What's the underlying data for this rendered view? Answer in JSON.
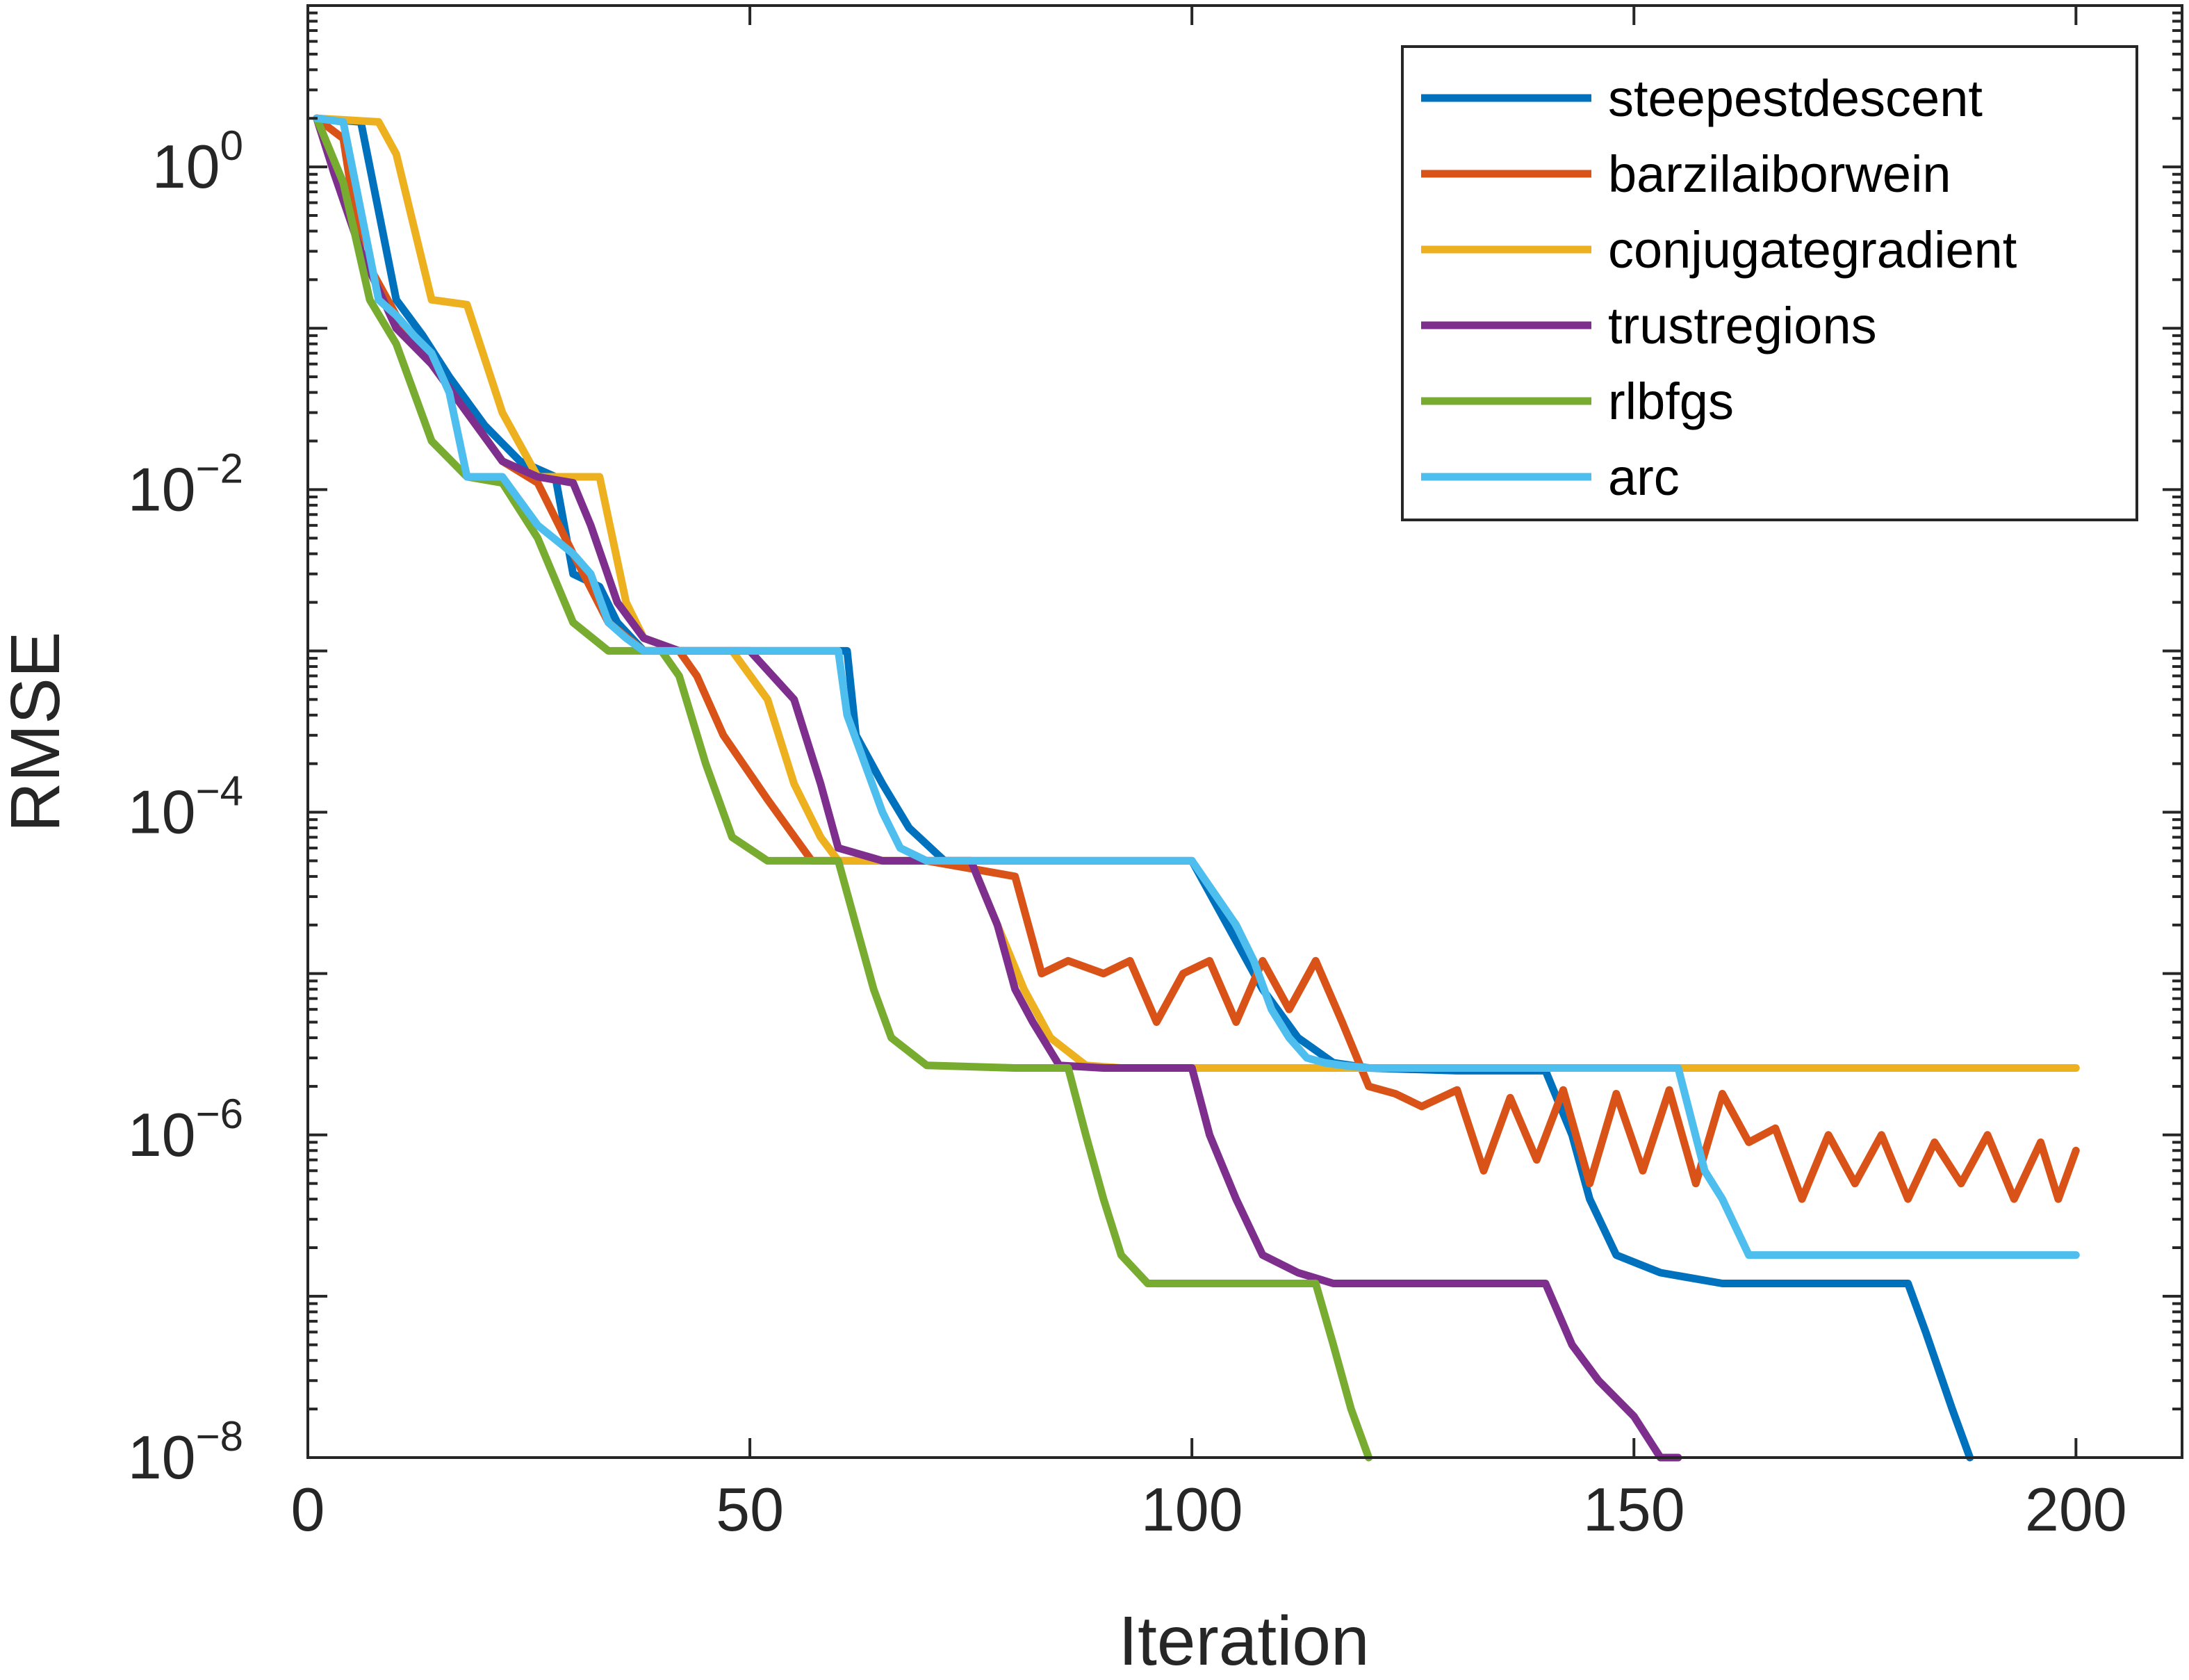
{
  "chart_data": {
    "type": "line",
    "title": "",
    "xlabel": "Iteration",
    "ylabel": "RMSE",
    "xlim": [
      0,
      212
    ],
    "xticks": [
      0,
      50,
      100,
      150,
      200
    ],
    "yscale": "log",
    "ylim": [
      1e-08,
      10
    ],
    "yticks": [
      {
        "base": "10",
        "exp": "0",
        "value": 1
      },
      {
        "base": "10",
        "exp": "−2",
        "value": 0.01
      },
      {
        "base": "10",
        "exp": "−4",
        "value": 0.0001
      },
      {
        "base": "10",
        "exp": "−6",
        "value": 1e-06
      },
      {
        "base": "10",
        "exp": "−8",
        "value": 1e-08
      }
    ],
    "grid": false,
    "legend_position": "top-right",
    "series": [
      {
        "name": "steepestdescent",
        "color": "#0072BD",
        "x": [
          1,
          6,
          10,
          13,
          16,
          20,
          24,
          28,
          30,
          33,
          35,
          38,
          42,
          50,
          55,
          61,
          62,
          65,
          68,
          72,
          78,
          85,
          95,
          100,
          104,
          108,
          112,
          116,
          120,
          130,
          140,
          143,
          145,
          148,
          153,
          160,
          170,
          181,
          183,
          186,
          188
        ],
        "y": [
          2,
          1.9,
          0.15,
          0.09,
          0.05,
          0.025,
          0.015,
          0.012,
          0.003,
          0.0025,
          0.0015,
          0.001,
          0.001,
          0.001,
          0.001,
          0.001,
          0.0003,
          0.00015,
          8e-05,
          5e-05,
          5e-05,
          5e-05,
          5e-05,
          5e-05,
          2e-05,
          8e-06,
          4e-06,
          2.8e-06,
          2.6e-06,
          2.5e-06,
          2.5e-06,
          1e-06,
          4e-07,
          1.8e-07,
          1.4e-07,
          1.2e-07,
          1.2e-07,
          1.2e-07,
          6e-08,
          2e-08,
          1e-08
        ]
      },
      {
        "name": "barzilaiborwein",
        "color": "#D95319",
        "x": [
          1,
          4,
          6,
          10,
          14,
          18,
          22,
          26,
          30,
          34,
          38,
          42,
          44,
          47,
          52,
          57,
          62,
          70,
          80,
          83,
          86,
          90,
          93,
          96,
          99,
          102,
          105,
          108,
          111,
          114,
          117,
          120,
          123,
          126,
          130,
          133,
          136,
          139,
          142,
          145,
          148,
          151,
          154,
          157,
          160,
          163,
          166,
          169,
          172,
          175,
          178,
          181,
          184,
          187,
          190,
          193,
          196,
          198,
          200
        ],
        "y": [
          2,
          1.5,
          0.3,
          0.12,
          0.06,
          0.03,
          0.015,
          0.011,
          0.004,
          0.0015,
          0.001,
          0.001,
          0.0007,
          0.0003,
          0.00012,
          5e-05,
          5e-05,
          5e-05,
          4e-05,
          1e-05,
          1.2e-05,
          1e-05,
          1.2e-05,
          5e-06,
          1e-05,
          1.2e-05,
          5e-06,
          1.2e-05,
          6e-06,
          1.2e-05,
          5e-06,
          2e-06,
          1.8e-06,
          1.5e-06,
          1.9e-06,
          6e-07,
          1.7e-06,
          7e-07,
          1.9e-06,
          5e-07,
          1.8e-06,
          6e-07,
          1.9e-06,
          5e-07,
          1.8e-06,
          9e-07,
          1.1e-06,
          4e-07,
          1e-06,
          5e-07,
          1e-06,
          4e-07,
          9e-07,
          5e-07,
          1e-06,
          4e-07,
          9e-07,
          4e-07,
          8e-07
        ]
      },
      {
        "name": "conjugategradient",
        "color": "#EDB120",
        "x": [
          1,
          8,
          10,
          14,
          18,
          22,
          26,
          30,
          33,
          36,
          38,
          42,
          48,
          52,
          55,
          58,
          60,
          65,
          70,
          75,
          78,
          81,
          84,
          88,
          92,
          100,
          120,
          150,
          200
        ],
        "y": [
          2,
          1.9,
          1.2,
          0.15,
          0.14,
          0.03,
          0.012,
          0.012,
          0.012,
          0.002,
          0.0012,
          0.001,
          0.001,
          0.0005,
          0.00015,
          7e-05,
          5e-05,
          5e-05,
          5e-05,
          5e-05,
          2e-05,
          8e-06,
          4e-06,
          2.7e-06,
          2.6e-06,
          2.6e-06,
          2.6e-06,
          2.6e-06,
          2.6e-06
        ]
      },
      {
        "name": "trustregions",
        "color": "#7E2F8E",
        "x": [
          1,
          3,
          6,
          10,
          14,
          18,
          22,
          26,
          30,
          32,
          35,
          38,
          42,
          50,
          55,
          58,
          60,
          65,
          70,
          75,
          78,
          80,
          82,
          85,
          90,
          100,
          102,
          105,
          108,
          112,
          116,
          120,
          130,
          140,
          143,
          146,
          150,
          153,
          155
        ],
        "y": [
          2,
          0.9,
          0.3,
          0.1,
          0.06,
          0.03,
          0.015,
          0.012,
          0.011,
          0.006,
          0.002,
          0.0012,
          0.001,
          0.001,
          0.0005,
          0.00015,
          6e-05,
          5e-05,
          5e-05,
          5e-05,
          2e-05,
          8e-06,
          5e-06,
          2.7e-06,
          2.6e-06,
          2.6e-06,
          1e-06,
          4e-07,
          1.8e-07,
          1.4e-07,
          1.2e-07,
          1.2e-07,
          1.2e-07,
          1.2e-07,
          5e-08,
          3e-08,
          1.8e-08,
          1e-08,
          1e-08
        ]
      },
      {
        "name": "rlbfgs",
        "color": "#77AC30",
        "x": [
          1,
          4,
          7,
          10,
          14,
          18,
          22,
          26,
          30,
          34,
          38,
          40,
          42,
          45,
          48,
          52,
          57,
          60,
          62,
          64,
          66,
          70,
          80,
          86,
          88,
          90,
          92,
          95,
          100,
          105,
          114,
          116,
          118,
          120
        ],
        "y": [
          2,
          0.8,
          0.15,
          0.08,
          0.02,
          0.012,
          0.011,
          0.005,
          0.0015,
          0.001,
          0.001,
          0.001,
          0.0007,
          0.0002,
          7e-05,
          5e-05,
          5e-05,
          5e-05,
          2e-05,
          8e-06,
          4e-06,
          2.7e-06,
          2.6e-06,
          2.6e-06,
          1e-06,
          4e-07,
          1.8e-07,
          1.2e-07,
          1.2e-07,
          1.2e-07,
          1.2e-07,
          5e-08,
          2e-08,
          1e-08
        ]
      },
      {
        "name": "arc",
        "color": "#4DBEEE",
        "x": [
          1,
          4,
          8,
          10,
          12,
          14,
          16,
          18,
          22,
          26,
          30,
          32,
          34,
          36,
          38,
          40,
          44,
          50,
          55,
          60,
          61,
          63,
          65,
          67,
          70,
          75,
          100,
          105,
          107,
          109,
          111,
          113,
          115,
          117,
          120,
          125,
          150,
          155,
          158,
          160,
          163,
          180,
          200
        ],
        "y": [
          2,
          1.9,
          0.15,
          0.12,
          0.09,
          0.07,
          0.04,
          0.012,
          0.012,
          0.006,
          0.004,
          0.003,
          0.0015,
          0.0012,
          0.001,
          0.001,
          0.001,
          0.001,
          0.001,
          0.001,
          0.0004,
          0.0002,
          0.0001,
          6e-05,
          5e-05,
          5e-05,
          5e-05,
          2e-05,
          1.2e-05,
          6e-06,
          4e-06,
          3e-06,
          2.8e-06,
          2.7e-06,
          2.6e-06,
          2.6e-06,
          2.6e-06,
          2.6e-06,
          6e-07,
          4e-07,
          1.8e-07,
          1.8e-07,
          1.8e-07
        ]
      }
    ]
  }
}
